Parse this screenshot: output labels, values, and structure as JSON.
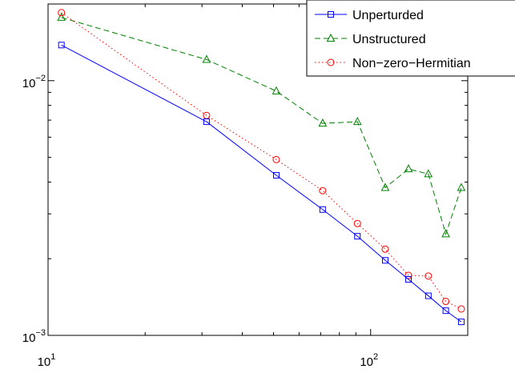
{
  "chart_data": {
    "type": "line",
    "xscale": "log",
    "yscale": "log",
    "xlim": [
      10,
      200
    ],
    "ylim": [
      0.001,
      0.02
    ],
    "x_ticks": [
      {
        "value": 10,
        "base": "10",
        "exp": "1"
      },
      {
        "value": 100,
        "base": "10",
        "exp": "2"
      }
    ],
    "y_ticks": [
      {
        "value": 0.01,
        "base": "10",
        "exp": "−2"
      },
      {
        "value": 0.001,
        "base": "10",
        "exp": "−3"
      }
    ],
    "grid": false,
    "legend_position": "top-right",
    "series": [
      {
        "name": "Unperturded",
        "color": "#0000ff",
        "line_style": "solid",
        "marker": "square",
        "x": [
          11,
          31,
          51,
          71,
          91,
          111,
          131,
          151,
          171,
          191
        ],
        "y": [
          0.0138,
          0.0069,
          0.00425,
          0.00312,
          0.00245,
          0.00197,
          0.00166,
          0.00143,
          0.00125,
          0.00113
        ]
      },
      {
        "name": "Unstructured",
        "color": "#008000",
        "line_style": "dashed",
        "marker": "triangle",
        "x": [
          11,
          31,
          51,
          71,
          91,
          111,
          131,
          151,
          171,
          191
        ],
        "y": [
          0.0177,
          0.0121,
          0.0091,
          0.0068,
          0.0069,
          0.0038,
          0.0045,
          0.0043,
          0.0025,
          0.0038
        ]
      },
      {
        "name": "Non−zero−Hermitian",
        "color": "#ff0000",
        "line_style": "dotted",
        "marker": "circle",
        "x": [
          11,
          31,
          51,
          71,
          91,
          111,
          131,
          151,
          171,
          191
        ],
        "y": [
          0.0185,
          0.0073,
          0.0049,
          0.0037,
          0.00275,
          0.00218,
          0.00172,
          0.00171,
          0.00136,
          0.00127
        ]
      }
    ]
  }
}
